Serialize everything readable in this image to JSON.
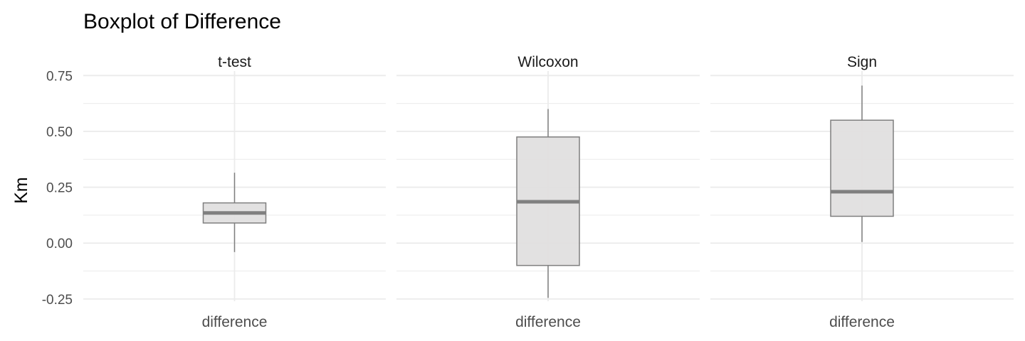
{
  "chart_data": {
    "type": "boxplot",
    "title": "Boxplot of Difference",
    "ylabel": "Km",
    "xlabel": "",
    "ylim": [
      -0.26,
      0.77
    ],
    "yticks": [
      -0.25,
      0.0,
      0.25,
      0.5,
      0.75
    ],
    "ytick_labels": [
      "-0.25",
      "0.00",
      "0.25",
      "0.50",
      "0.75"
    ],
    "grid": true,
    "legend": "none",
    "box_fill": "#e0dfdf",
    "box_stroke": "#7f7f7f",
    "median_color": "#808080",
    "grid_color": "#ebebeb",
    "panels": [
      {
        "strip": "t-test",
        "category": "difference",
        "stats": {
          "whisker_low": -0.04,
          "q1": 0.09,
          "median": 0.135,
          "q3": 0.18,
          "whisker_high": 0.315
        }
      },
      {
        "strip": "Wilcoxon",
        "category": "difference",
        "stats": {
          "whisker_low": -0.245,
          "q1": -0.1,
          "median": 0.185,
          "q3": 0.475,
          "whisker_high": 0.6
        }
      },
      {
        "strip": "Sign",
        "category": "difference",
        "stats": {
          "whisker_low": 0.005,
          "q1": 0.12,
          "median": 0.23,
          "q3": 0.55,
          "whisker_high": 0.705
        }
      }
    ]
  }
}
